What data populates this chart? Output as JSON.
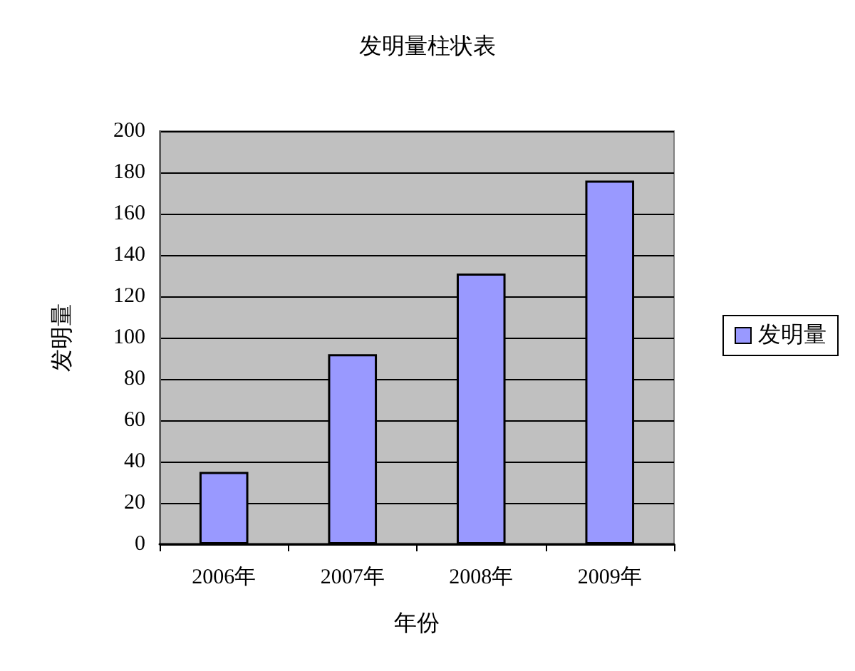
{
  "chart_data": {
    "type": "bar",
    "title": "发明量柱状表",
    "xlabel": "年份",
    "ylabel": "发明量",
    "categories": [
      "2006年",
      "2007年",
      "2008年",
      "2009年"
    ],
    "series": [
      {
        "name": "发明量",
        "color": "#9999ff",
        "values": [
          35,
          92,
          131,
          176
        ]
      }
    ],
    "ylim": [
      0,
      200
    ],
    "yticks": [
      0,
      20,
      40,
      60,
      80,
      100,
      120,
      140,
      160,
      180,
      200
    ],
    "grid": "y",
    "legend": "right"
  }
}
